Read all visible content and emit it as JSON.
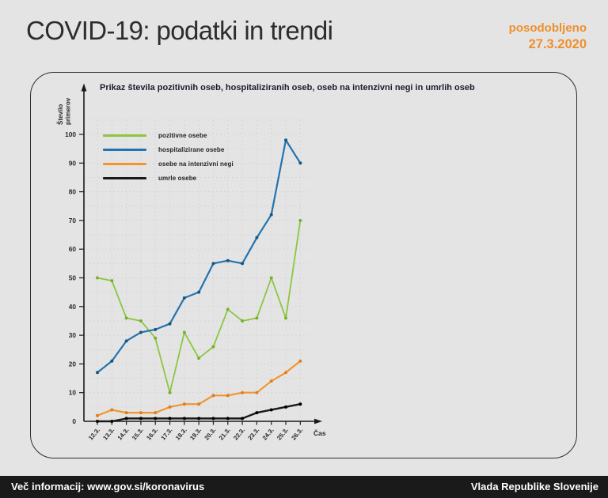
{
  "header": {
    "title": "COVID-19: podatki in trendi",
    "updated_label": "posodobljeno",
    "updated_date": "27.3.2020",
    "accent_color": "#ef8f2a"
  },
  "chart": {
    "title": "Prikaz števila pozitivnih oseb, hospitaliziranih oseb, oseb na intenzivni negi in umrlih oseb",
    "y_axis_label": "Število primerov",
    "y_axis_label_line1": "Število",
    "y_axis_label_line2": "primerov",
    "x_axis_label": "Čas"
  },
  "chart_data": {
    "type": "line",
    "title": "Prikaz števila pozitivnih oseb, hospitaliziranih oseb, oseb na intenzivni negi in umrlih oseb",
    "xlabel": "Čas",
    "ylabel": "Število primerov",
    "ylim": [
      0,
      100
    ],
    "y_tick_step": 10,
    "grid": true,
    "grid_step": 5,
    "legend_position": "top-left-inside",
    "categories": [
      "12.3.",
      "13.3.",
      "14.3.",
      "15.3.",
      "16.3.",
      "17.3.",
      "18.3.",
      "19.3.",
      "20.3.",
      "21.3.",
      "22.3.",
      "23.3.",
      "24.3.",
      "25.3.",
      "26.3."
    ],
    "series": [
      {
        "name": "pozitivne osebe",
        "color": "#8dc63f",
        "marker_color": "#79af2e",
        "values": [
          50,
          49,
          36,
          35,
          29,
          10,
          31,
          22,
          26,
          39,
          35,
          36,
          50,
          36,
          70
        ]
      },
      {
        "name": "hospitalizirane osebe",
        "color": "#2274b0",
        "marker_color": "#1a577f",
        "values": [
          17,
          21,
          28,
          31,
          32,
          34,
          43,
          45,
          55,
          56,
          55,
          64,
          72,
          98,
          90
        ]
      },
      {
        "name": "osebe na intenzivni negi",
        "color": "#f2952f",
        "marker_color": "#df7f1d",
        "values": [
          2,
          4,
          3,
          3,
          3,
          5,
          6,
          6,
          9,
          9,
          10,
          10,
          14,
          17,
          21
        ]
      },
      {
        "name": "umrle osebe",
        "color": "#1a1a1a",
        "marker_color": "#000000",
        "values": [
          0,
          0,
          1,
          1,
          1,
          1,
          1,
          1,
          1,
          1,
          1,
          3,
          4,
          5,
          6
        ]
      }
    ]
  },
  "footer": {
    "left": "Več informacij: www.gov.si/koronavirus",
    "right": "Vlada Republike Slovenije"
  }
}
